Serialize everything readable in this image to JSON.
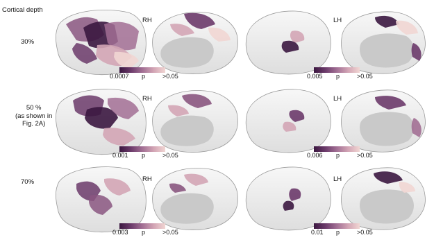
{
  "header": {
    "title": "Cortical depth"
  },
  "hemispheres": {
    "right": "RH",
    "left": "LH"
  },
  "rows": [
    {
      "label": "30%",
      "rh_scale": {
        "min": "0.0007",
        "mid": "p",
        "max": ">0.05"
      },
      "lh_scale": {
        "min": "0.005",
        "mid": "p",
        "max": ">0.05"
      }
    },
    {
      "label": "50 %\n(as shown in\nFig. 2A)",
      "rh_scale": {
        "min": "0.001",
        "mid": "p",
        "max": ">0.05"
      },
      "lh_scale": {
        "min": "0.006",
        "mid": "p",
        "max": ">0.05"
      }
    },
    {
      "label": "70%",
      "rh_scale": {
        "min": "0.003",
        "mid": "p",
        "max": ">0.05"
      },
      "lh_scale": {
        "min": "0.01",
        "mid": "p",
        "max": ">0.05"
      }
    }
  ],
  "colors": {
    "cortex": "#f2f2f2",
    "cortex_stroke": "#9a9a9a",
    "medial_wall": "#c9c9c9",
    "sig_dark": "#3b1740",
    "sig_mid": "#8a5680",
    "sig_light": "#f1d6d3"
  }
}
